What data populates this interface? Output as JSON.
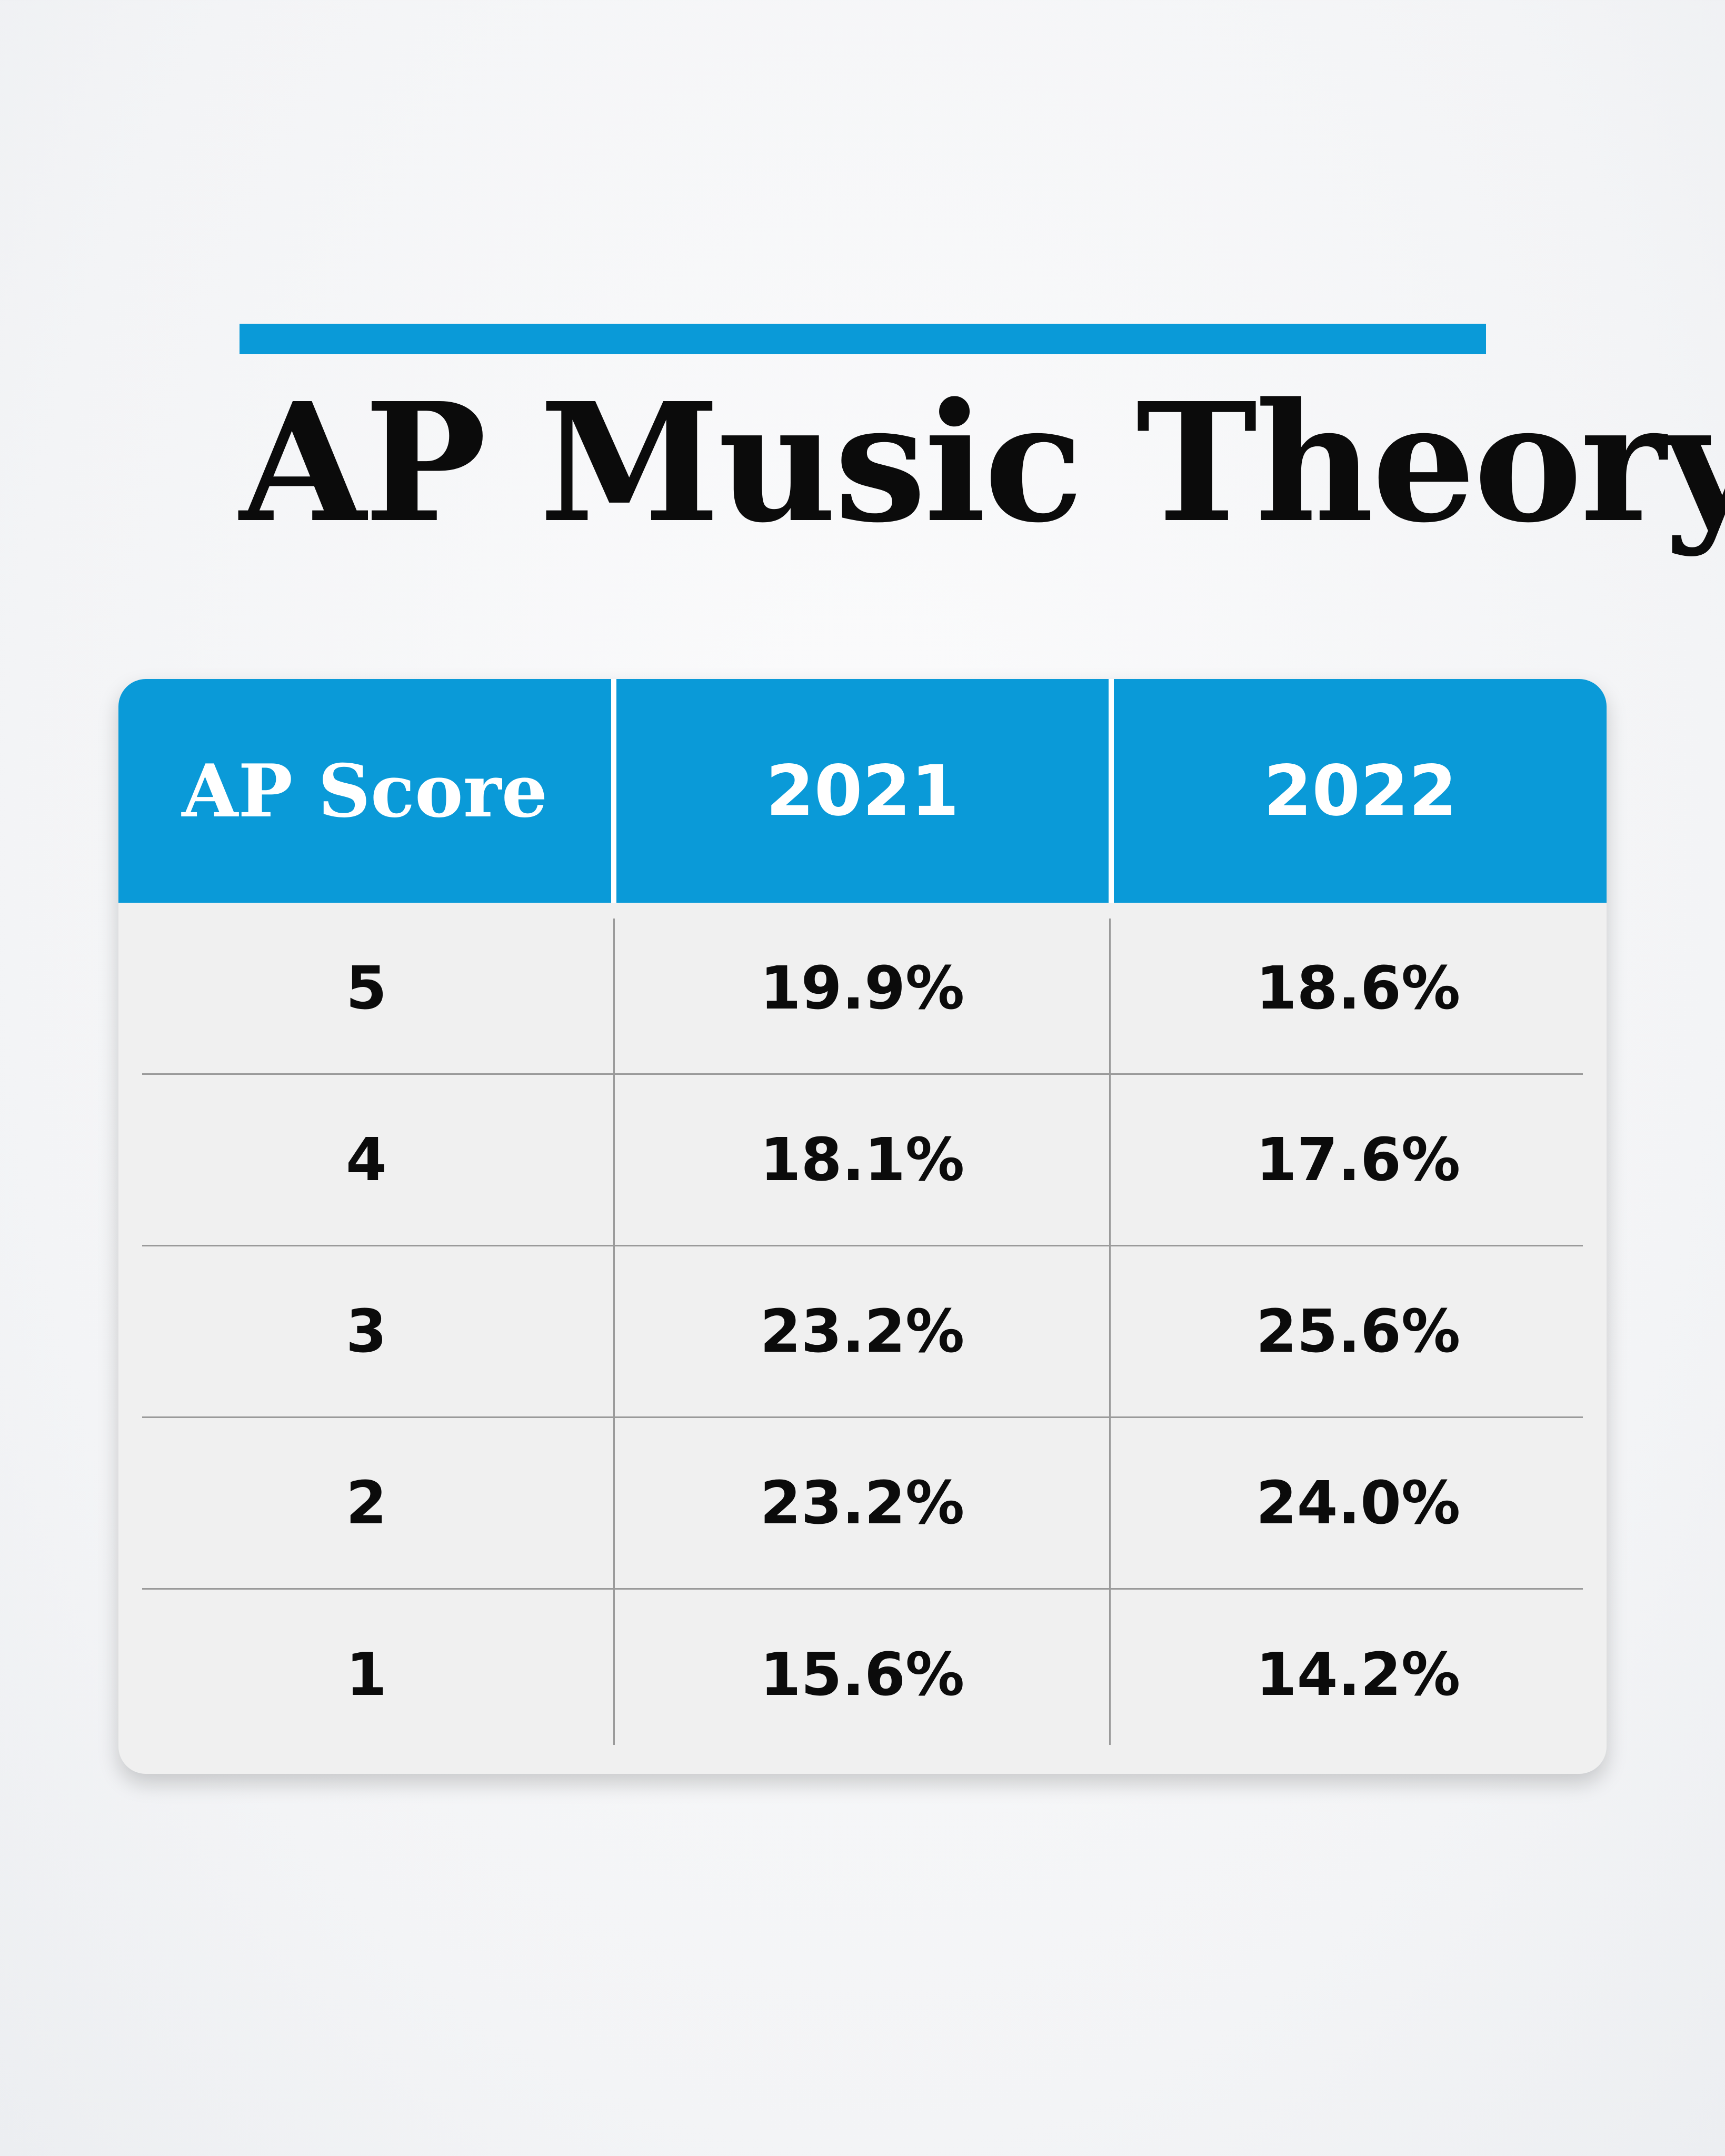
{
  "title": "AP Music Theory",
  "colors": {
    "accent": "#0a9ad8",
    "table_body": "#f0f0f0",
    "text": "#0b0b0b"
  },
  "chart_data": {
    "type": "table",
    "columns": [
      "AP Score",
      "2021",
      "2022"
    ],
    "rows": [
      [
        "5",
        "19.9%",
        "18.6%"
      ],
      [
        "4",
        "18.1%",
        "17.6%"
      ],
      [
        "3",
        "23.2%",
        "25.6%"
      ],
      [
        "2",
        "23.2%",
        "24.0%"
      ],
      [
        "1",
        "15.6%",
        "14.2%"
      ]
    ]
  }
}
